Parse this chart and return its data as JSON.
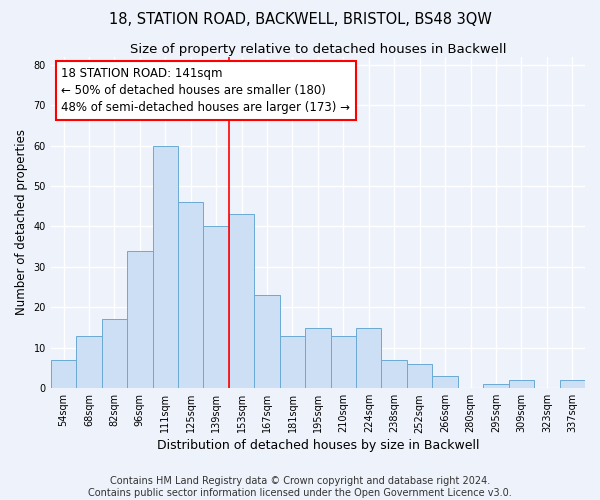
{
  "title": "18, STATION ROAD, BACKWELL, BRISTOL, BS48 3QW",
  "subtitle": "Size of property relative to detached houses in Backwell",
  "xlabel": "Distribution of detached houses by size in Backwell",
  "ylabel": "Number of detached properties",
  "footer_line1": "Contains HM Land Registry data © Crown copyright and database right 2024.",
  "footer_line2": "Contains public sector information licensed under the Open Government Licence v3.0.",
  "bar_labels": [
    "54sqm",
    "68sqm",
    "82sqm",
    "96sqm",
    "111sqm",
    "125sqm",
    "139sqm",
    "153sqm",
    "167sqm",
    "181sqm",
    "195sqm",
    "210sqm",
    "224sqm",
    "238sqm",
    "252sqm",
    "266sqm",
    "280sqm",
    "295sqm",
    "309sqm",
    "323sqm",
    "337sqm"
  ],
  "bar_values": [
    7,
    13,
    17,
    34,
    60,
    46,
    40,
    43,
    23,
    13,
    15,
    13,
    15,
    7,
    6,
    3,
    0,
    1,
    2,
    0,
    2
  ],
  "bar_color": "#ccdff5",
  "bar_edgecolor": "#6aaad4",
  "vline_x": 6.5,
  "vline_color": "red",
  "vline_linewidth": 1.2,
  "annotation_line1": "18 STATION ROAD: 141sqm",
  "annotation_line2": "← 50% of detached houses are smaller (180)",
  "annotation_line3": "48% of semi-detached houses are larger (173) →",
  "annotation_box_edgecolor": "red",
  "annotation_fontsize": 8.5,
  "ylim": [
    0,
    82
  ],
  "yticks": [
    0,
    10,
    20,
    30,
    40,
    50,
    60,
    70,
    80
  ],
  "background_color": "#eef2fa",
  "plot_background": "#eef2fa",
  "grid_color": "#ffffff",
  "title_fontsize": 10.5,
  "subtitle_fontsize": 9.5,
  "xlabel_fontsize": 9,
  "ylabel_fontsize": 8.5,
  "tick_fontsize": 7,
  "footer_fontsize": 7
}
